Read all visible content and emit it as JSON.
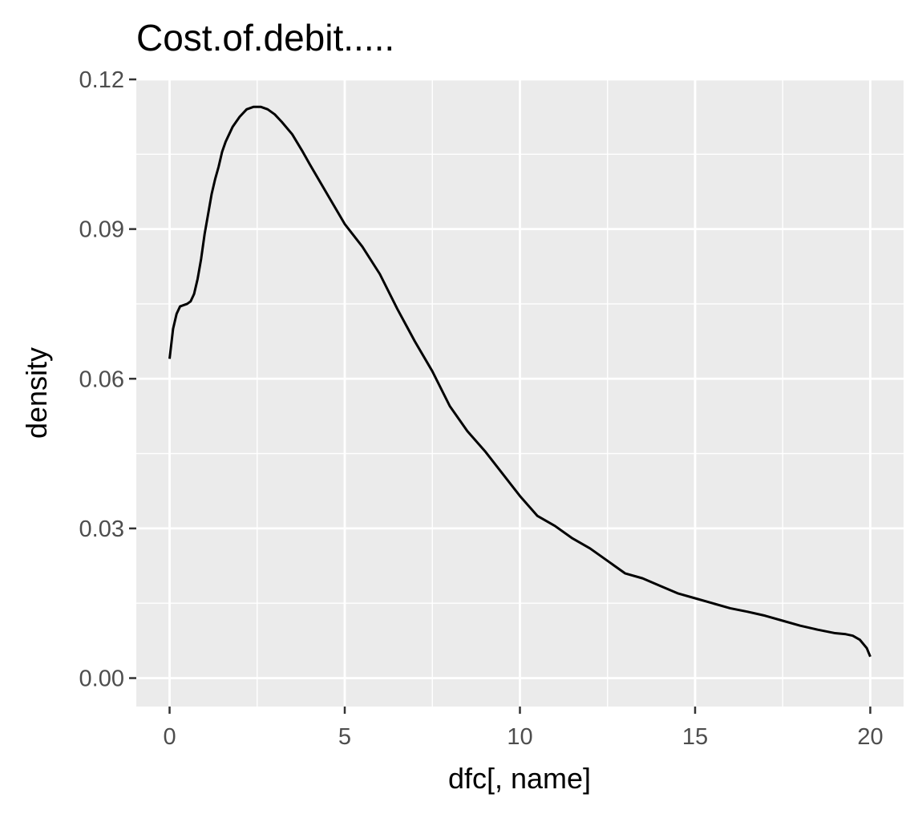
{
  "chart_data": {
    "type": "line",
    "title": "Cost.of.debit.....",
    "xlabel": "dfc[, name]",
    "ylabel": "density",
    "xlim": [
      -0.95,
      20.95
    ],
    "ylim": [
      -0.0057,
      0.12
    ],
    "x_ticks": [
      0,
      5,
      10,
      15,
      20
    ],
    "x_tick_labels": [
      "0",
      "5",
      "10",
      "15",
      "20"
    ],
    "y_ticks": [
      0,
      0.03,
      0.06,
      0.09,
      0.12
    ],
    "y_tick_labels": [
      "0.00",
      "0.03",
      "0.06",
      "0.09",
      "0.12"
    ],
    "grid": true,
    "legend": "none",
    "colors": {
      "panel_background": "#ebebeb",
      "grid_line": "#ffffff",
      "line": "#000000",
      "tick_mark": "#333333"
    },
    "series": [
      {
        "x": [
          0,
          0.1,
          0.2,
          0.3,
          0.5,
          0.6,
          0.7,
          0.8,
          0.9,
          1.0,
          1.1,
          1.2,
          1.3,
          1.4,
          1.5,
          1.6,
          1.7,
          1.8,
          2.0,
          2.2,
          2.4,
          2.6,
          2.8,
          3.0,
          3.2,
          3.5,
          3.8,
          4.0,
          4.5,
          5.0,
          5.5,
          6.0,
          6.5,
          7.0,
          7.5,
          8.0,
          8.5,
          9.0,
          9.5,
          10.0,
          10.5,
          11.0,
          11.5,
          12.0,
          12.5,
          13.0,
          13.5,
          14.0,
          14.5,
          15.0,
          15.5,
          16.0,
          16.5,
          17.0,
          17.5,
          18.0,
          18.5,
          19.0,
          19.3,
          19.5,
          19.7,
          19.9,
          20.0
        ],
        "y": [
          0.064,
          0.07,
          0.073,
          0.0745,
          0.075,
          0.0755,
          0.077,
          0.08,
          0.084,
          0.089,
          0.093,
          0.097,
          0.1,
          0.1025,
          0.1055,
          0.1075,
          0.109,
          0.1105,
          0.1125,
          0.114,
          0.1145,
          0.1145,
          0.114,
          0.113,
          0.1115,
          0.109,
          0.1055,
          0.103,
          0.097,
          0.091,
          0.0865,
          0.081,
          0.074,
          0.0675,
          0.0615,
          0.0545,
          0.0495,
          0.0455,
          0.041,
          0.0365,
          0.0325,
          0.0305,
          0.028,
          0.026,
          0.0235,
          0.021,
          0.02,
          0.0185,
          0.017,
          0.016,
          0.015,
          0.014,
          0.0133,
          0.0125,
          0.0115,
          0.0105,
          0.0097,
          0.009,
          0.0088,
          0.0085,
          0.0077,
          0.006,
          0.0043
        ]
      }
    ]
  }
}
